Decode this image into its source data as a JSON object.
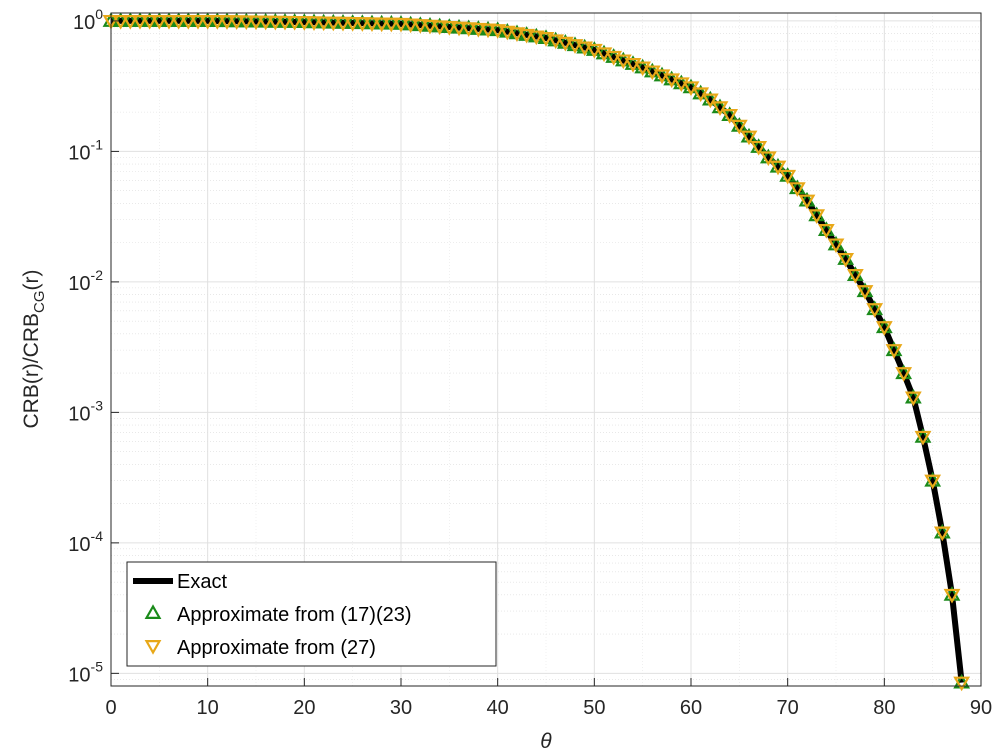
{
  "chart_data": {
    "type": "line",
    "title": "",
    "xlabel": "θ",
    "ylabel_main": "CRB(r)/CRB",
    "ylabel_sub": "CG",
    "ylabel_tail": "(r)",
    "xlim": [
      0,
      90
    ],
    "ylim": [
      8e-06,
      1.15
    ],
    "y_scale": "log",
    "grid": true,
    "minor_grid": true,
    "legend_position": "bottom-left",
    "x_ticks": [
      {
        "value": 0,
        "label": "0"
      },
      {
        "value": 10,
        "label": "10"
      },
      {
        "value": 20,
        "label": "20"
      },
      {
        "value": 30,
        "label": "30"
      },
      {
        "value": 40,
        "label": "40"
      },
      {
        "value": 50,
        "label": "50"
      },
      {
        "value": 60,
        "label": "60"
      },
      {
        "value": 70,
        "label": "70"
      },
      {
        "value": 80,
        "label": "80"
      },
      {
        "value": 90,
        "label": "90"
      }
    ],
    "y_ticks": [
      {
        "value": 1,
        "base": "10",
        "exp": "0"
      },
      {
        "value": 0.1,
        "base": "10",
        "exp": "-1"
      },
      {
        "value": 0.01,
        "base": "10",
        "exp": "-2"
      },
      {
        "value": 0.001,
        "base": "10",
        "exp": "-3"
      },
      {
        "value": 0.0001,
        "base": "10",
        "exp": "-4"
      },
      {
        "value": 1e-05,
        "base": "10",
        "exp": "-5"
      }
    ],
    "series": [
      {
        "name": "Exact",
        "style": "line",
        "color": "#000000",
        "x": [
          0,
          10,
          20,
          30,
          40,
          45,
          50,
          55,
          60,
          62,
          64,
          66,
          68,
          70,
          72,
          74,
          76,
          78,
          80,
          82,
          83,
          84,
          85,
          86,
          87,
          88
        ],
        "values": [
          1.0,
          1.0,
          0.98,
          0.95,
          0.85,
          0.74,
          0.6,
          0.44,
          0.31,
          0.25,
          0.19,
          0.13,
          0.09,
          0.065,
          0.042,
          0.025,
          0.015,
          0.0085,
          0.0045,
          0.002,
          0.0013,
          0.00065,
          0.0003,
          0.00012,
          4e-05,
          8.5e-06
        ]
      },
      {
        "name": "Approximate from (17)(23)",
        "style": "marker-triangle-up",
        "color": "#1a8a1a",
        "x": [
          0,
          10,
          20,
          30,
          40,
          45,
          50,
          55,
          60,
          62,
          64,
          66,
          68,
          70,
          72,
          74,
          76,
          78,
          80,
          82,
          83,
          84,
          85,
          86,
          87,
          88
        ],
        "values": [
          1.0,
          1.0,
          0.98,
          0.95,
          0.85,
          0.74,
          0.6,
          0.44,
          0.31,
          0.25,
          0.19,
          0.13,
          0.09,
          0.065,
          0.042,
          0.025,
          0.015,
          0.0085,
          0.0045,
          0.002,
          0.0013,
          0.00065,
          0.0003,
          0.00012,
          4e-05,
          8.5e-06
        ]
      },
      {
        "name": "Approximate from (27)",
        "style": "marker-triangle-down",
        "color": "#e8a818",
        "x": [
          0,
          10,
          20,
          30,
          40,
          45,
          50,
          55,
          60,
          62,
          64,
          66,
          68,
          70,
          72,
          74,
          76,
          78,
          80,
          82,
          83,
          84,
          85,
          86,
          87,
          88
        ],
        "values": [
          1.0,
          1.0,
          0.98,
          0.95,
          0.85,
          0.74,
          0.6,
          0.44,
          0.31,
          0.25,
          0.19,
          0.13,
          0.09,
          0.065,
          0.042,
          0.025,
          0.015,
          0.0085,
          0.0045,
          0.002,
          0.0013,
          0.00065,
          0.0003,
          0.00012,
          4e-05,
          8.5e-06
        ]
      }
    ]
  }
}
